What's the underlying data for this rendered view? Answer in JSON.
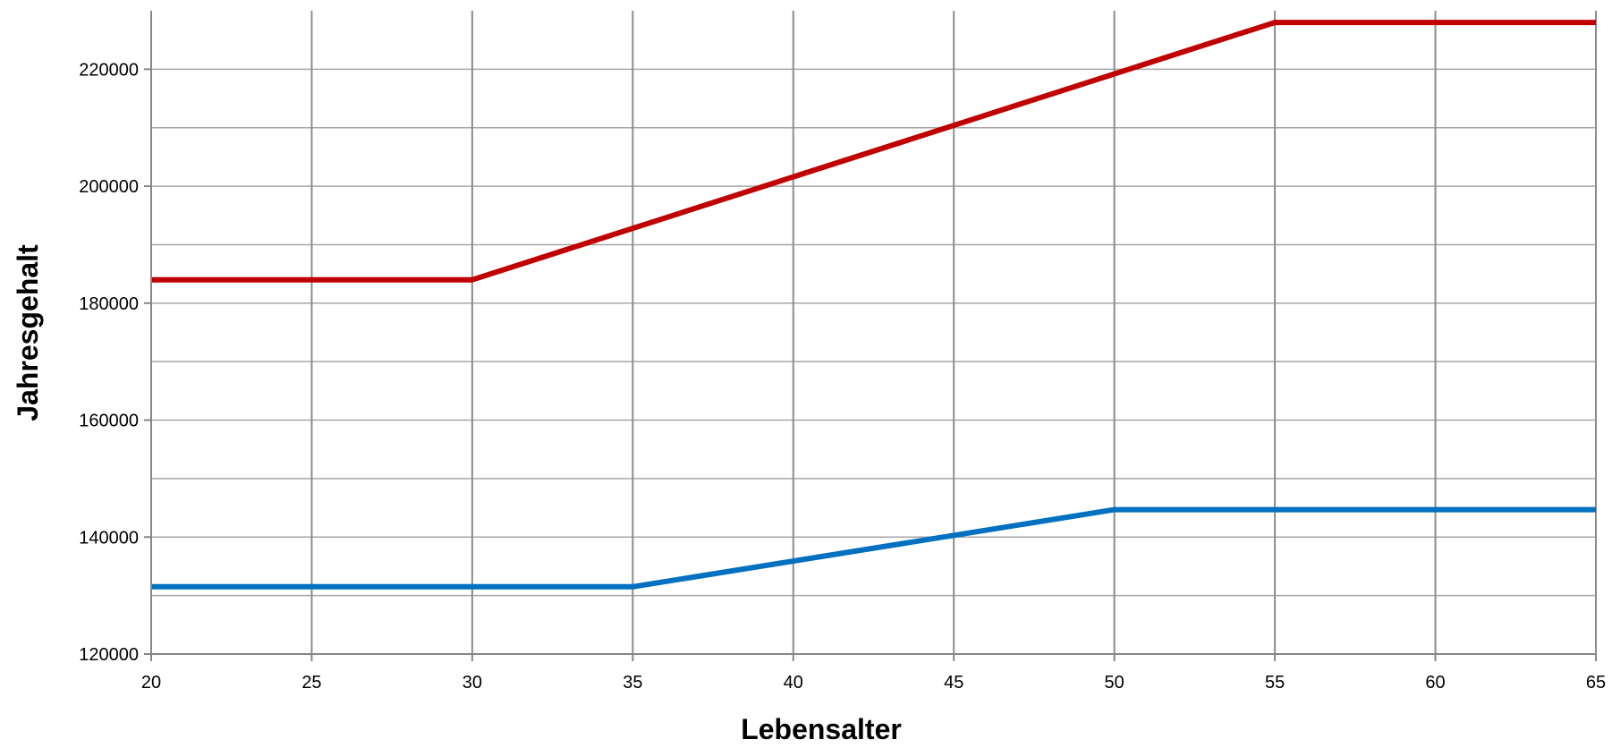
{
  "chart_data": {
    "type": "line",
    "title": "",
    "xlabel": "Lebensalter",
    "ylabel": "Jahresgehalt",
    "xlim": [
      20,
      65
    ],
    "ylim": [
      120000,
      230000
    ],
    "x_ticks": [
      20,
      25,
      30,
      35,
      40,
      45,
      50,
      55,
      60,
      65
    ],
    "y_ticks": [
      120000,
      140000,
      160000,
      180000,
      200000,
      220000
    ],
    "y_minor_gridlines": [
      130000,
      150000,
      170000,
      190000,
      210000
    ],
    "grid": true,
    "legend": "none",
    "series": [
      {
        "color": "#c00000",
        "x": [
          20,
          30,
          55,
          65
        ],
        "y": [
          184000,
          184000,
          228000,
          228000
        ]
      },
      {
        "color": "#0070c0",
        "x": [
          20,
          35,
          50,
          65
        ],
        "y": [
          131500,
          131500,
          144700,
          144700
        ]
      }
    ]
  }
}
